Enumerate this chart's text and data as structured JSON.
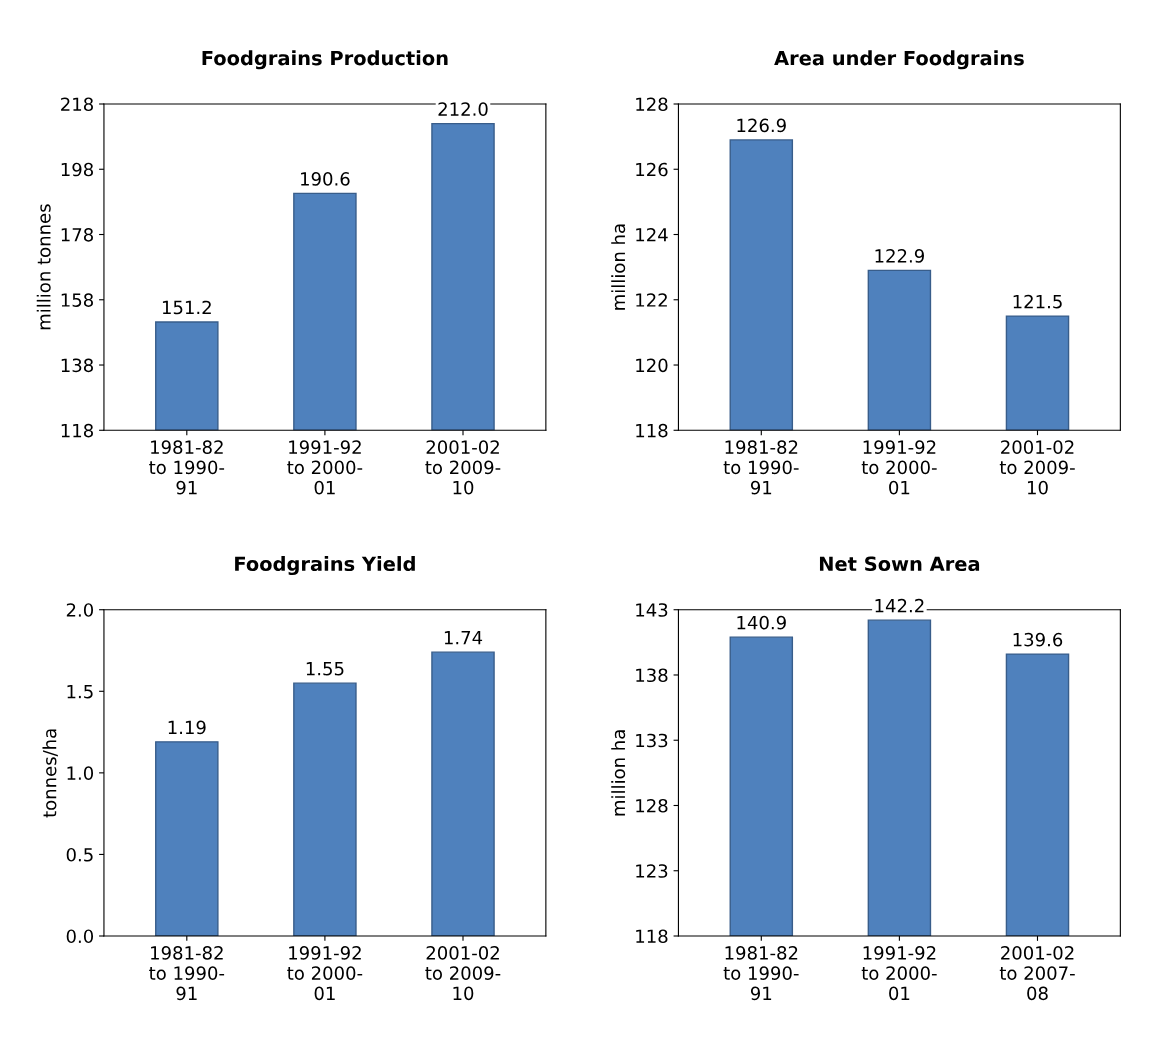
{
  "chart_data": [
    {
      "type": "bar",
      "title": "Foodgrains Production",
      "ylabel": "million tonnes",
      "categories": [
        "1981-82\nto 1990-\n91",
        "1991-92\nto 2000-\n01",
        "2001-02\nto 2009-\n10"
      ],
      "values": [
        151.2,
        190.6,
        212.0
      ],
      "value_labels": [
        "151.2",
        "190.6",
        "212.0"
      ],
      "color": "#4f81bd",
      "ylim": [
        118,
        218
      ],
      "yticks": [
        118,
        138,
        158,
        178,
        198,
        218
      ],
      "grid": false
    },
    {
      "type": "bar",
      "title": "Area under Foodgrains",
      "ylabel": "million ha",
      "categories": [
        "1981-82\nto 1990-\n91",
        "1991-92\nto 2000-\n01",
        "2001-02\nto 2009-\n10"
      ],
      "values": [
        126.9,
        122.9,
        121.5
      ],
      "data_labels": true,
      "color": "#4f81bd",
      "ylim": [
        118,
        128
      ],
      "yticks": [
        118,
        120,
        122,
        124,
        126,
        128
      ],
      "grid": false
    },
    {
      "type": "bar",
      "title": "Foodgrains Yield",
      "ylabel": "tonnes/ha",
      "categories": [
        "1981-82\nto 1990-\n91",
        "1991-92\nto 2000-\n01",
        "2001-02\nto 2009-\n10"
      ],
      "values": [
        1.19,
        1.55,
        1.74
      ],
      "data_labels": true,
      "color": "#4f81bd",
      "ylim": [
        0,
        2
      ],
      "yticks": [
        {
          "value": 0,
          "label": "0.0"
        },
        {
          "value": 0.5,
          "label": "0.5"
        },
        {
          "value": 1,
          "label": "1.0"
        },
        {
          "value": 1.5,
          "label": "1.5"
        },
        {
          "value": 2,
          "label": "2.0"
        }
      ],
      "grid": false
    },
    {
      "type": "bar",
      "title": "Net Sown Area",
      "ylabel": "million ha",
      "categories": [
        "1981-82\nto 1990-\n91",
        "1991-92\nto 2000-\n01",
        "2001-02\nto 2007-\n08"
      ],
      "values": [
        140.9,
        142.2,
        139.6
      ],
      "data_labels": true,
      "color": "#4f81bd",
      "ylim": [
        118,
        143
      ],
      "yticks": [
        118,
        123,
        128,
        133,
        138,
        143
      ],
      "grid": false
    }
  ]
}
